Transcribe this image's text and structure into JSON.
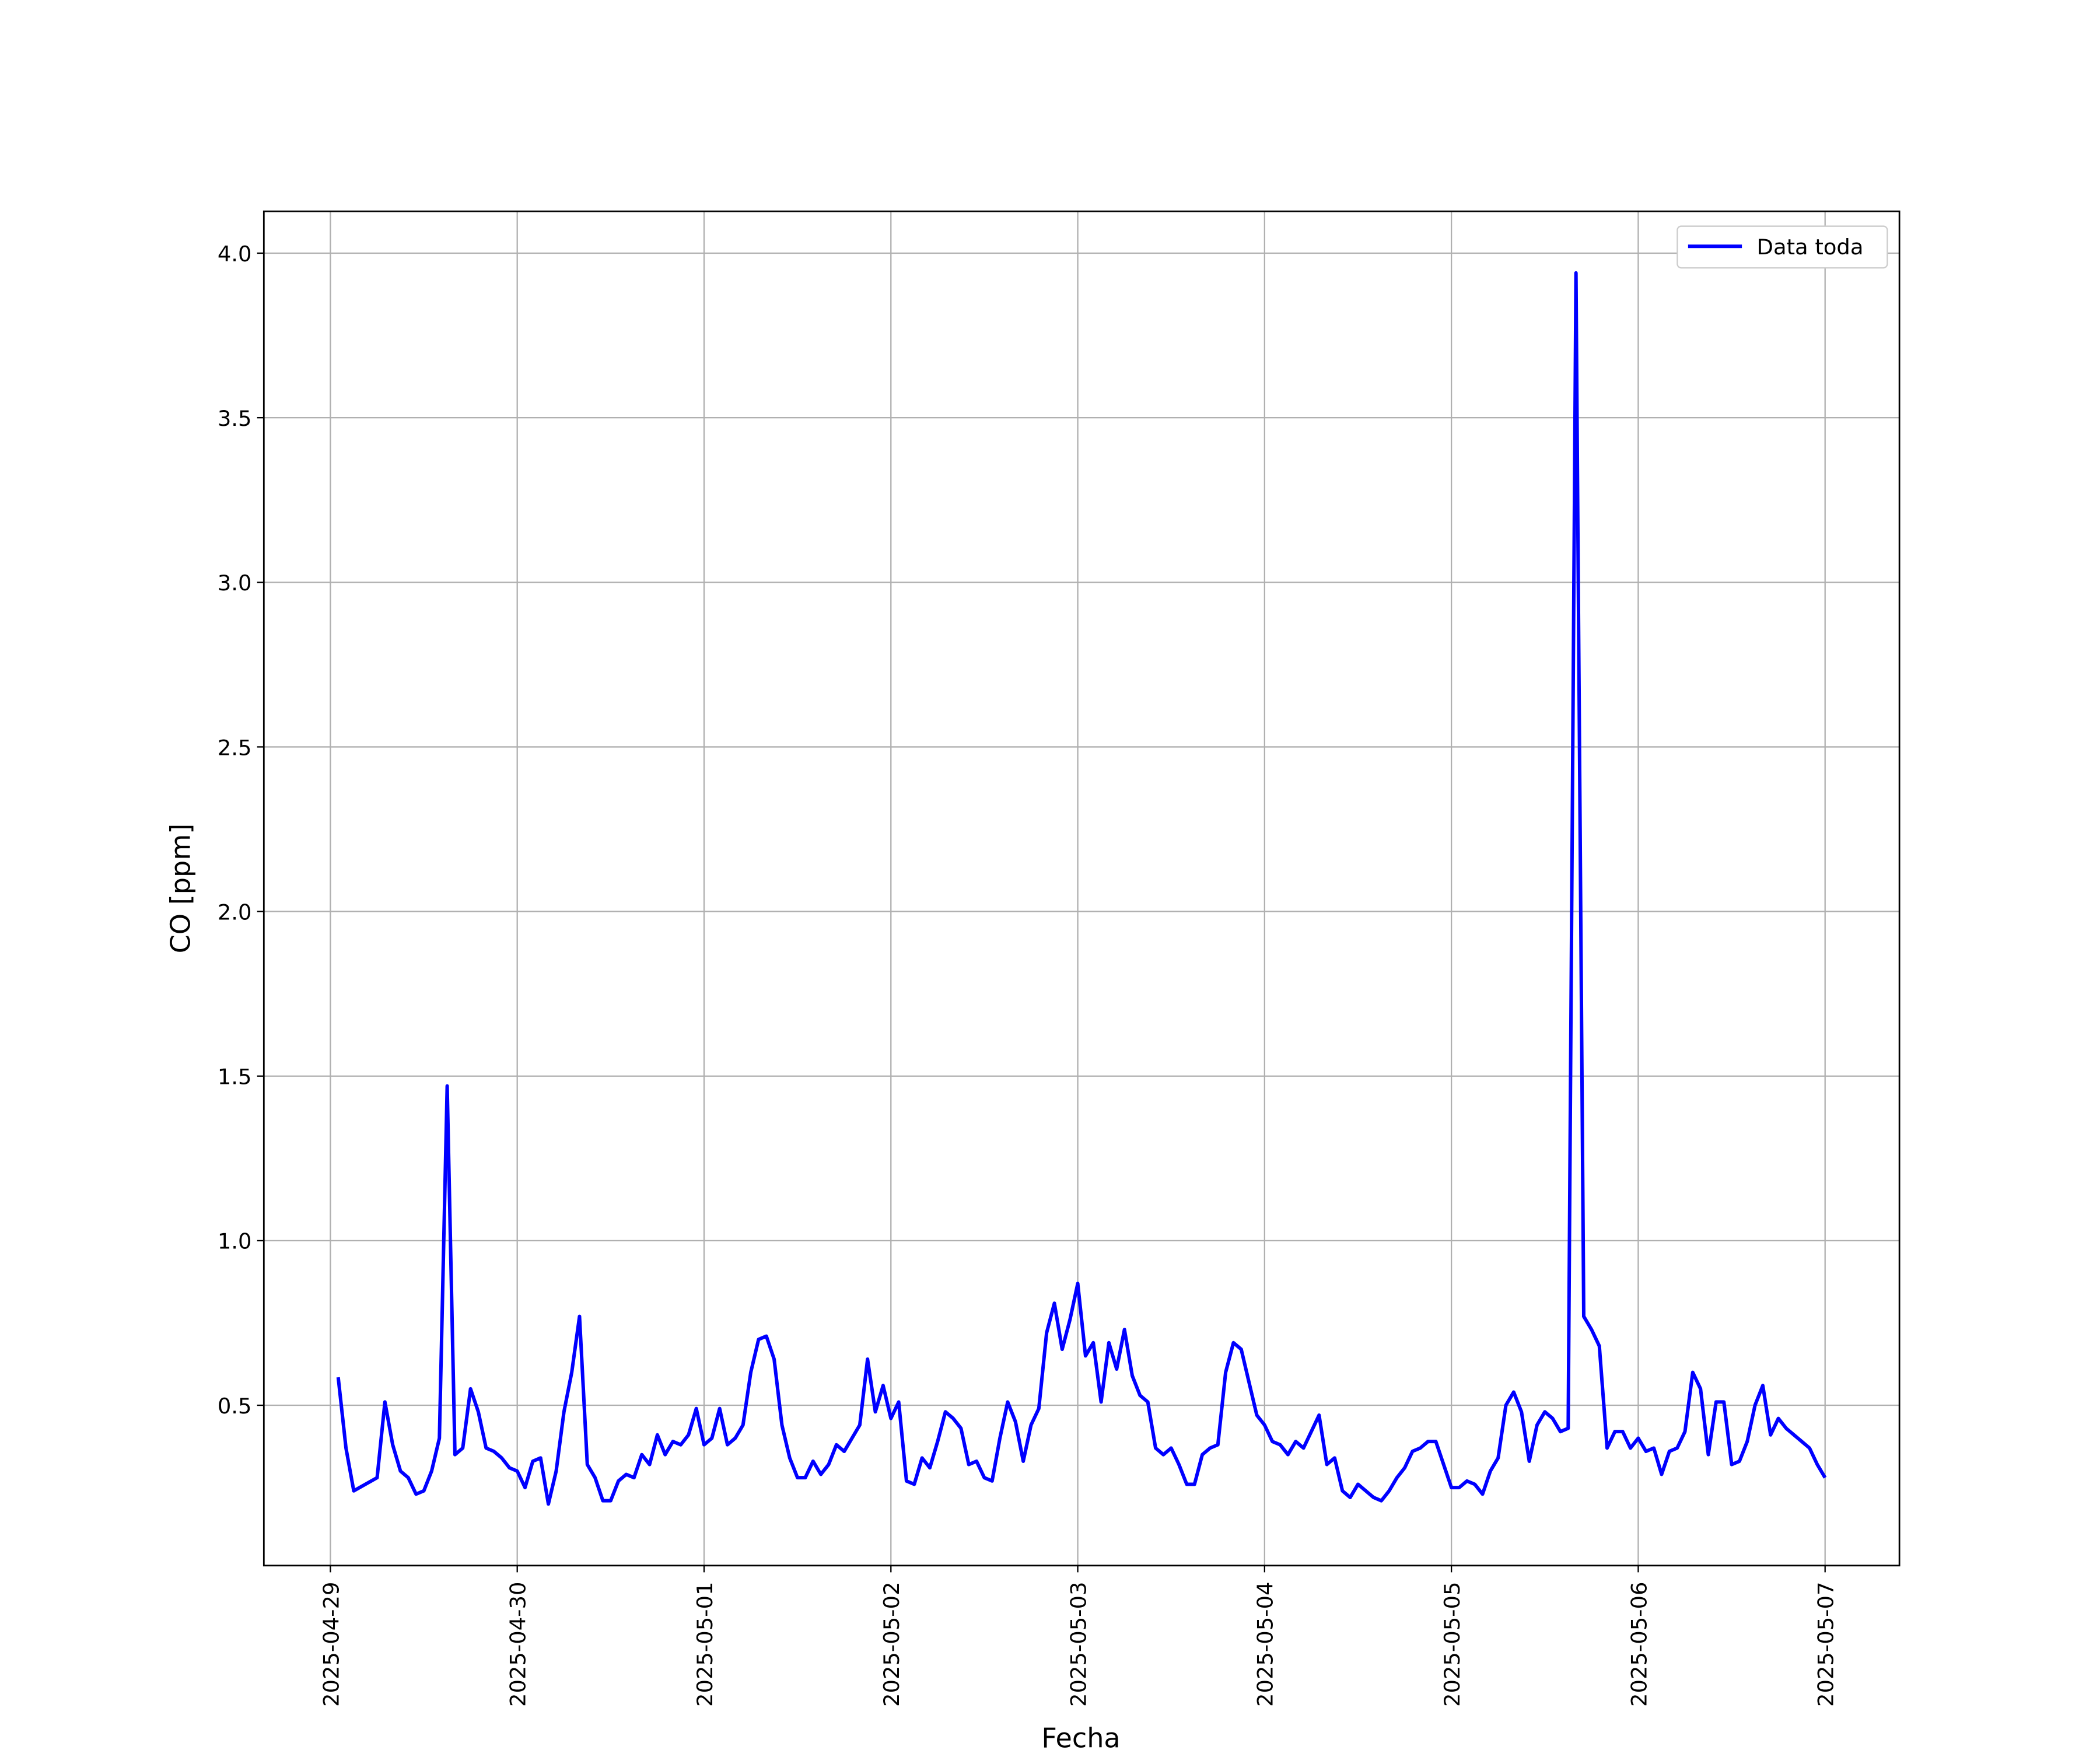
{
  "chart_data": {
    "type": "line",
    "xlabel": "Fecha",
    "ylabel": "CO [ppm]",
    "x": [
      "2025-04-29 01:00",
      "2025-04-29 02:00",
      "2025-04-29 03:00",
      "2025-04-29 06:00",
      "2025-04-29 07:00",
      "2025-04-29 08:00",
      "2025-04-29 09:00",
      "2025-04-29 10:00",
      "2025-04-29 11:00",
      "2025-04-29 12:00",
      "2025-04-29 13:00",
      "2025-04-29 14:00",
      "2025-04-29 15:00",
      "2025-04-29 16:00",
      "2025-04-29 17:00",
      "2025-04-29 18:00",
      "2025-04-29 19:00",
      "2025-04-29 20:00",
      "2025-04-29 21:00",
      "2025-04-29 22:00",
      "2025-04-29 23:00",
      "2025-04-30 00:00",
      "2025-04-30 01:00",
      "2025-04-30 02:00",
      "2025-04-30 03:00",
      "2025-04-30 04:00",
      "2025-04-30 05:00",
      "2025-04-30 06:00",
      "2025-04-30 07:00",
      "2025-04-30 08:00",
      "2025-04-30 09:00",
      "2025-04-30 10:00",
      "2025-04-30 11:00",
      "2025-04-30 12:00",
      "2025-04-30 13:00",
      "2025-04-30 14:00",
      "2025-04-30 15:00",
      "2025-04-30 16:00",
      "2025-04-30 17:00",
      "2025-04-30 18:00",
      "2025-04-30 19:00",
      "2025-04-30 20:00",
      "2025-04-30 21:00",
      "2025-04-30 22:00",
      "2025-04-30 23:00",
      "2025-05-01 00:00",
      "2025-05-01 01:00",
      "2025-05-01 02:00",
      "2025-05-01 03:00",
      "2025-05-01 04:00",
      "2025-05-01 05:00",
      "2025-05-01 06:00",
      "2025-05-01 07:00",
      "2025-05-01 08:00",
      "2025-05-01 09:00",
      "2025-05-01 10:00",
      "2025-05-01 11:00",
      "2025-05-01 12:00",
      "2025-05-01 13:00",
      "2025-05-01 14:00",
      "2025-05-01 15:00",
      "2025-05-01 16:00",
      "2025-05-01 17:00",
      "2025-05-01 18:00",
      "2025-05-01 19:00",
      "2025-05-01 20:00",
      "2025-05-01 21:00",
      "2025-05-01 22:00",
      "2025-05-01 23:00",
      "2025-05-02 00:00",
      "2025-05-02 01:00",
      "2025-05-02 02:00",
      "2025-05-02 03:00",
      "2025-05-02 04:00",
      "2025-05-02 05:00",
      "2025-05-02 06:00",
      "2025-05-02 07:00",
      "2025-05-02 08:00",
      "2025-05-02 09:00",
      "2025-05-02 10:00",
      "2025-05-02 11:00",
      "2025-05-02 12:00",
      "2025-05-02 13:00",
      "2025-05-02 14:00",
      "2025-05-02 15:00",
      "2025-05-02 16:00",
      "2025-05-02 17:00",
      "2025-05-02 18:00",
      "2025-05-02 19:00",
      "2025-05-02 20:00",
      "2025-05-02 21:00",
      "2025-05-02 22:00",
      "2025-05-02 23:00",
      "2025-05-03 00:00",
      "2025-05-03 01:00",
      "2025-05-03 02:00",
      "2025-05-03 03:00",
      "2025-05-03 04:00",
      "2025-05-03 05:00",
      "2025-05-03 06:00",
      "2025-05-03 07:00",
      "2025-05-03 08:00",
      "2025-05-03 09:00",
      "2025-05-03 10:00",
      "2025-05-03 11:00",
      "2025-05-03 12:00",
      "2025-05-03 13:00",
      "2025-05-03 14:00",
      "2025-05-03 15:00",
      "2025-05-03 16:00",
      "2025-05-03 17:00",
      "2025-05-03 18:00",
      "2025-05-03 19:00",
      "2025-05-03 20:00",
      "2025-05-03 21:00",
      "2025-05-03 22:00",
      "2025-05-03 23:00",
      "2025-05-04 00:00",
      "2025-05-04 01:00",
      "2025-05-04 02:00",
      "2025-05-04 03:00",
      "2025-05-04 04:00",
      "2025-05-04 05:00",
      "2025-05-04 06:00",
      "2025-05-04 07:00",
      "2025-05-04 08:00",
      "2025-05-04 09:00",
      "2025-05-04 10:00",
      "2025-05-04 11:00",
      "2025-05-04 12:00",
      "2025-05-04 13:00",
      "2025-05-04 14:00",
      "2025-05-04 15:00",
      "2025-05-04 16:00",
      "2025-05-04 17:00",
      "2025-05-04 18:00",
      "2025-05-04 19:00",
      "2025-05-04 20:00",
      "2025-05-04 21:00",
      "2025-05-04 22:00",
      "2025-05-04 23:00",
      "2025-05-05 00:00",
      "2025-05-05 01:00",
      "2025-05-05 02:00",
      "2025-05-05 03:00",
      "2025-05-05 04:00",
      "2025-05-05 05:00",
      "2025-05-05 06:00",
      "2025-05-05 07:00",
      "2025-05-05 08:00",
      "2025-05-05 09:00",
      "2025-05-05 10:00",
      "2025-05-05 11:00",
      "2025-05-05 12:00",
      "2025-05-05 13:00",
      "2025-05-05 14:00",
      "2025-05-05 15:00",
      "2025-05-05 16:00",
      "2025-05-05 17:00",
      "2025-05-05 18:00",
      "2025-05-05 19:00",
      "2025-05-05 20:00",
      "2025-05-05 21:00",
      "2025-05-05 22:00",
      "2025-05-05 23:00",
      "2025-05-06 00:00",
      "2025-05-06 01:00",
      "2025-05-06 02:00",
      "2025-05-06 03:00",
      "2025-05-06 04:00",
      "2025-05-06 05:00",
      "2025-05-06 06:00",
      "2025-05-06 07:00",
      "2025-05-06 08:00",
      "2025-05-06 09:00",
      "2025-05-06 10:00",
      "2025-05-06 11:00",
      "2025-05-06 12:00",
      "2025-05-06 13:00",
      "2025-05-06 14:00",
      "2025-05-06 15:00",
      "2025-05-06 16:00",
      "2025-05-06 17:00",
      "2025-05-06 18:00",
      "2025-05-06 19:00",
      "2025-05-06 20:00",
      "2025-05-06 21:00",
      "2025-05-06 22:00",
      "2025-05-06 23:00",
      "2025-05-07 00:00"
    ],
    "series": [
      {
        "name": "Data toda",
        "color": "#0000ff",
        "values": [
          0.585,
          0.37,
          0.24,
          0.28,
          0.51,
          0.38,
          0.3,
          0.28,
          0.23,
          0.24,
          0.3,
          0.4,
          1.47,
          0.35,
          0.37,
          0.55,
          0.48,
          0.37,
          0.36,
          0.34,
          0.31,
          0.3,
          0.25,
          0.33,
          0.34,
          0.2,
          0.3,
          0.48,
          0.6,
          0.77,
          0.32,
          0.28,
          0.21,
          0.21,
          0.27,
          0.29,
          0.28,
          0.35,
          0.32,
          0.41,
          0.35,
          0.39,
          0.38,
          0.41,
          0.49,
          0.38,
          0.4,
          0.49,
          0.38,
          0.4,
          0.44,
          0.6,
          0.7,
          0.71,
          0.64,
          0.44,
          0.34,
          0.28,
          0.28,
          0.33,
          0.29,
          0.32,
          0.38,
          0.36,
          0.4,
          0.44,
          0.64,
          0.48,
          0.56,
          0.46,
          0.51,
          0.27,
          0.26,
          0.34,
          0.31,
          0.39,
          0.48,
          0.46,
          0.43,
          0.32,
          0.33,
          0.28,
          0.27,
          0.4,
          0.51,
          0.45,
          0.33,
          0.44,
          0.49,
          0.72,
          0.81,
          0.67,
          0.76,
          0.87,
          0.65,
          0.69,
          0.51,
          0.69,
          0.61,
          0.73,
          0.59,
          0.53,
          0.51,
          0.37,
          0.35,
          0.37,
          0.32,
          0.26,
          0.26,
          0.35,
          0.37,
          0.38,
          0.6,
          0.69,
          0.67,
          0.57,
          0.47,
          0.44,
          0.39,
          0.38,
          0.35,
          0.39,
          0.37,
          0.42,
          0.47,
          0.32,
          0.34,
          0.24,
          0.22,
          0.26,
          0.24,
          0.22,
          0.21,
          0.24,
          0.28,
          0.31,
          0.36,
          0.37,
          0.39,
          0.39,
          0.32,
          0.25,
          0.25,
          0.27,
          0.26,
          0.23,
          0.3,
          0.34,
          0.5,
          0.54,
          0.48,
          0.33,
          0.44,
          0.48,
          0.46,
          0.42,
          0.43,
          3.94,
          0.77,
          0.73,
          0.68,
          0.37,
          0.42,
          0.42,
          0.37,
          0.4,
          0.36,
          0.37,
          0.29,
          0.36,
          0.37,
          0.42,
          0.6,
          0.55,
          0.35,
          0.51,
          0.51,
          0.32,
          0.33,
          0.39,
          0.5,
          0.56,
          0.41,
          0.46,
          0.43,
          0.41,
          0.39,
          0.37,
          0.32,
          0.28
        ]
      }
    ],
    "xlim": [
      "2025-04-28 15:27",
      "2025-05-07 09:33"
    ],
    "xticks": [
      "2025-04-29",
      "2025-04-30",
      "2025-05-01",
      "2025-05-02",
      "2025-05-03",
      "2025-05-04",
      "2025-05-05",
      "2025-05-06",
      "2025-05-07"
    ],
    "ylim": [
      0.013,
      4.127
    ],
    "yticks": [
      0.5,
      {
        "value": 1,
        "label": "1.0"
      },
      1.5,
      {
        "value": 2,
        "label": "2.0"
      },
      2.5,
      {
        "value": 3,
        "label": "3.0"
      },
      3.5,
      {
        "value": 4,
        "label": "4.0"
      }
    ],
    "grid": true,
    "legend": "upper right"
  }
}
